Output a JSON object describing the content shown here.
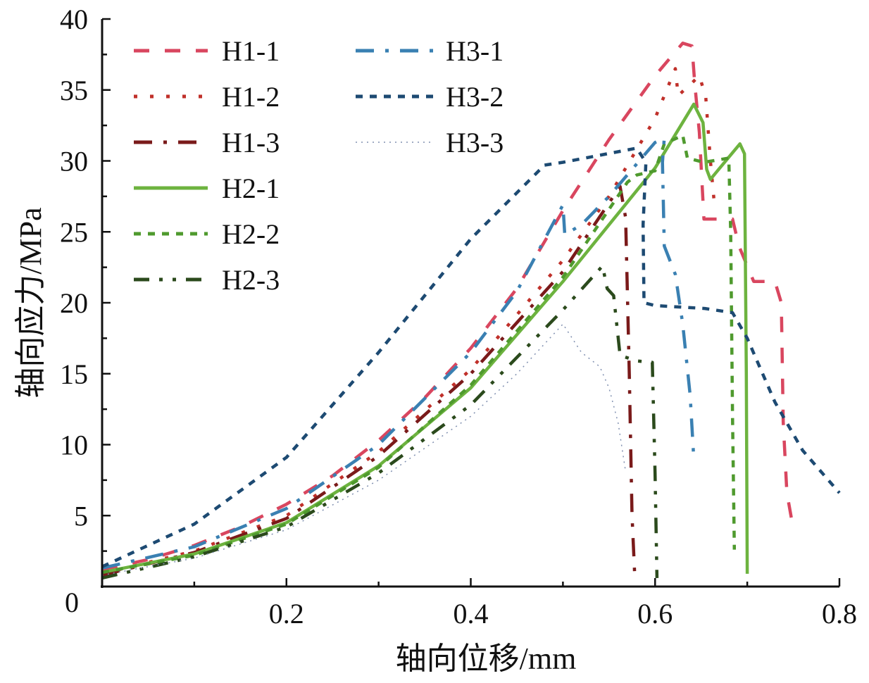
{
  "chart_data": {
    "type": "line",
    "title": "",
    "xlabel": "轴向位移/mm",
    "ylabel": "轴向应力/MPa",
    "xlim": [
      0,
      0.8
    ],
    "ylim": [
      0,
      40
    ],
    "xticks": [
      "0.2",
      "0.4",
      "0.6",
      "0.8"
    ],
    "xtick_values": [
      0.2,
      0.4,
      0.6,
      0.8
    ],
    "yticks": [
      "0",
      "5",
      "10",
      "15",
      "20",
      "25",
      "30",
      "35",
      "40"
    ],
    "ytick_values": [
      0,
      5,
      10,
      15,
      20,
      25,
      30,
      35,
      40
    ],
    "grid": false,
    "legend_placement": "top-left",
    "series": [
      {
        "name": "H1-1",
        "color": "#d9465f",
        "style": "dash",
        "x": [
          0,
          0.05,
          0.1,
          0.15,
          0.2,
          0.25,
          0.3,
          0.35,
          0.4,
          0.45,
          0.5,
          0.55,
          0.6,
          0.63,
          0.64,
          0.643,
          0.648,
          0.653,
          0.684,
          0.691,
          0.707,
          0.73,
          0.737,
          0.739,
          0.743,
          0.749
        ],
        "y": [
          1.2,
          1.9,
          2.9,
          4.2,
          5.8,
          7.8,
          10.3,
          13.3,
          16.8,
          21.0,
          26.5,
          31.5,
          36.0,
          38.3,
          38.1,
          35.5,
          32,
          25.9,
          25.9,
          24,
          21.5,
          21.5,
          20,
          11.6,
          6.6,
          4.4
        ]
      },
      {
        "name": "H1-2",
        "color": "#c0302a",
        "style": "dot",
        "x": [
          0,
          0.1,
          0.2,
          0.3,
          0.4,
          0.5,
          0.55,
          0.6,
          0.622,
          0.625,
          0.64,
          0.648,
          0.655,
          0.66,
          0.665
        ],
        "y": [
          0.9,
          2.5,
          5.0,
          9.5,
          15.3,
          23,
          27.5,
          33,
          36.5,
          34.6,
          35.5,
          36,
          34.5,
          30,
          26.5
        ]
      },
      {
        "name": "H1-3",
        "color": "#7a1a1a",
        "style": "dashdot",
        "x": [
          0,
          0.1,
          0.2,
          0.3,
          0.4,
          0.5,
          0.562,
          0.568,
          0.572,
          0.575,
          0.578
        ],
        "y": [
          0.8,
          2.4,
          4.8,
          9.2,
          15,
          22.2,
          28.2,
          26,
          15,
          5,
          0.6
        ]
      },
      {
        "name": "H2-1",
        "color": "#6db33f",
        "style": "solid",
        "x": [
          0,
          0.1,
          0.2,
          0.3,
          0.4,
          0.5,
          0.55,
          0.6,
          0.642,
          0.652,
          0.656,
          0.66,
          0.692,
          0.697,
          0.699,
          0.7
        ],
        "y": [
          1,
          2.3,
          4.5,
          8.5,
          14,
          21.5,
          25.5,
          29.5,
          34,
          32.7,
          29.4,
          28.7,
          31.2,
          30.5,
          15,
          0.9
        ]
      },
      {
        "name": "H2-2",
        "color": "#4f9a2e",
        "style": "shortdash",
        "x": [
          0,
          0.1,
          0.2,
          0.3,
          0.4,
          0.5,
          0.57,
          0.58,
          0.6,
          0.61,
          0.63,
          0.635,
          0.653,
          0.68,
          0.682,
          0.684,
          0.686
        ],
        "y": [
          1,
          2.2,
          4.4,
          8.4,
          14.2,
          21.8,
          28.5,
          29,
          29.3,
          31.2,
          31.8,
          30.2,
          29.9,
          30.2,
          25,
          12,
          2.6
        ]
      },
      {
        "name": "H2-3",
        "color": "#2b4a1c",
        "style": "dashdotdot",
        "x": [
          0,
          0.1,
          0.2,
          0.3,
          0.4,
          0.5,
          0.543,
          0.548,
          0.555,
          0.562,
          0.58,
          0.597,
          0.6,
          0.602
        ],
        "y": [
          0.6,
          2.1,
          4.2,
          8,
          12.8,
          19.5,
          22.6,
          21,
          20.5,
          16.3,
          15.9,
          15.8,
          8,
          0.6
        ]
      },
      {
        "name": "H3-1",
        "color": "#3a80b2",
        "style": "dashdot",
        "x": [
          0,
          0.1,
          0.2,
          0.3,
          0.4,
          0.45,
          0.5,
          0.502,
          0.52,
          0.55,
          0.6,
          0.61,
          0.608,
          0.61,
          0.622,
          0.63,
          0.638,
          0.642
        ],
        "y": [
          1.3,
          2.8,
          5.5,
          10,
          16.5,
          20.8,
          26.9,
          24.8,
          25.5,
          27.5,
          31.3,
          31.6,
          29.9,
          24,
          22,
          18.5,
          13.5,
          9
        ]
      },
      {
        "name": "H3-2",
        "color": "#1d4a72",
        "style": "shortdash",
        "x": [
          0,
          0.1,
          0.2,
          0.3,
          0.4,
          0.48,
          0.5,
          0.58,
          0.59,
          0.587,
          0.588,
          0.6,
          0.654,
          0.684,
          0.7,
          0.73,
          0.76,
          0.8
        ],
        "y": [
          1.4,
          4.4,
          9.1,
          16.5,
          24.5,
          29.7,
          29.9,
          30.9,
          29.9,
          25.5,
          20,
          19.8,
          19.6,
          19.3,
          17.5,
          13,
          9.6,
          6.6
        ]
      },
      {
        "name": "H3-3",
        "color": "#8090b0",
        "style": "thindot",
        "x": [
          0,
          0.1,
          0.2,
          0.3,
          0.4,
          0.45,
          0.5,
          0.52,
          0.54,
          0.55,
          0.56,
          0.568
        ],
        "y": [
          0.8,
          2.0,
          4.0,
          7.5,
          12,
          15,
          18.5,
          16.5,
          15.5,
          14,
          11.5,
          8.1
        ]
      }
    ]
  }
}
